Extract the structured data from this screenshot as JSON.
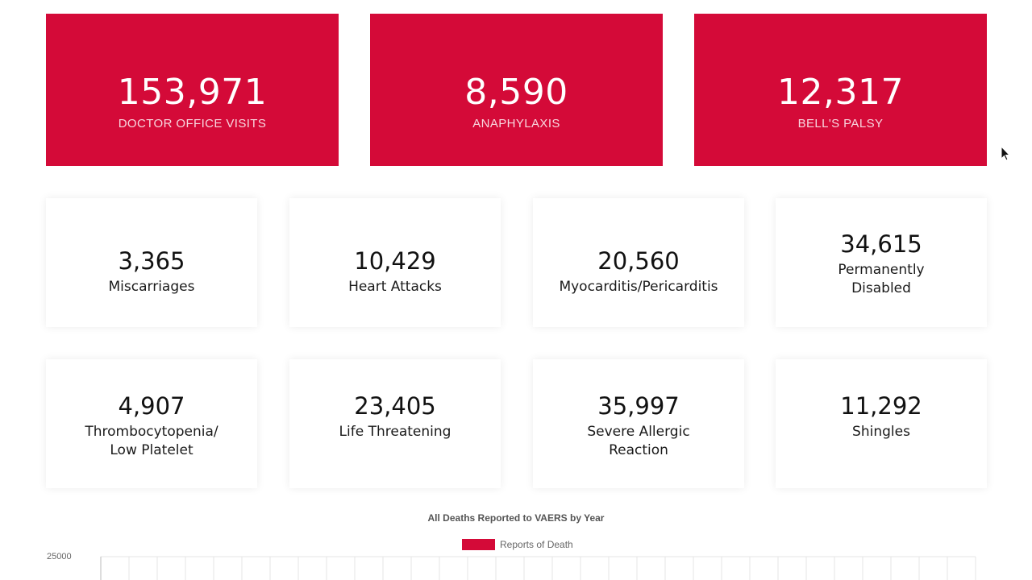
{
  "highlight_stats": [
    {
      "value": "153,971",
      "label": "DOCTOR OFFICE VISITS"
    },
    {
      "value": "8,590",
      "label": "ANAPHYLAXIS"
    },
    {
      "value": "12,317",
      "label": "BELL'S PALSY"
    }
  ],
  "stats_row1": [
    {
      "value": "3,365",
      "label": "Miscarriages"
    },
    {
      "value": "10,429",
      "label": "Heart Attacks"
    },
    {
      "value": "20,560",
      "label": "Myocarditis/Pericarditis"
    },
    {
      "value": "34,615",
      "label": "Permanently Disabled"
    }
  ],
  "stats_row2": [
    {
      "value": "4,907",
      "label": "Thrombocytopenia/ Low Platelet"
    },
    {
      "value": "23,405",
      "label": "Life Threatening"
    },
    {
      "value": "35,997",
      "label": "Severe Allergic Reaction"
    },
    {
      "value": "11,292",
      "label": "Shingles"
    }
  ],
  "chart_data": {
    "type": "bar",
    "title": "All Deaths Reported to VAERS by Year",
    "series": [
      {
        "name": "Reports of Death",
        "color": "#d40a38"
      }
    ],
    "y_ticks": [
      "25000"
    ],
    "grid": true,
    "legend": "top"
  },
  "colors": {
    "accent": "#d40a38",
    "card_bg": "#ffffff"
  },
  "icons": {
    "cursor": "mouse-pointer-icon"
  }
}
